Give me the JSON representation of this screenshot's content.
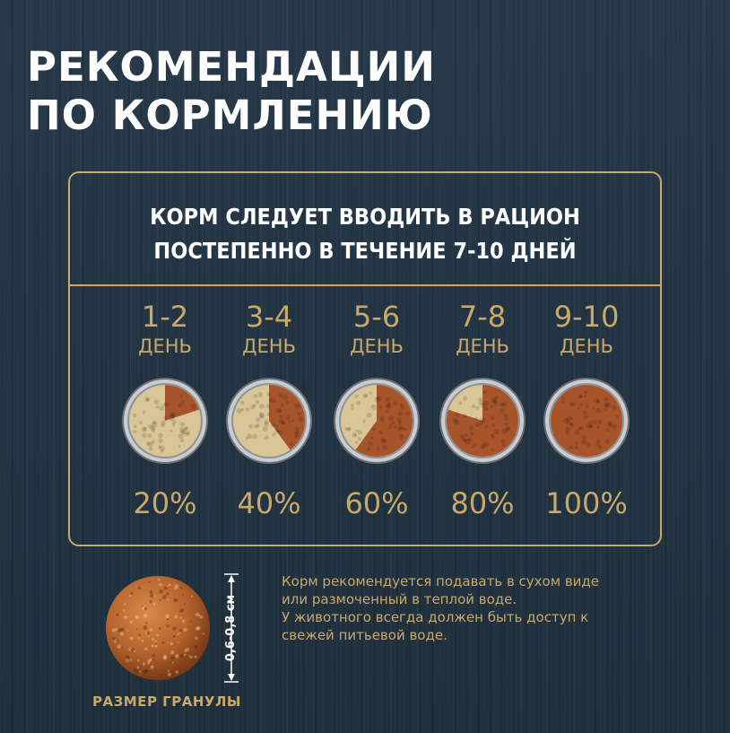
{
  "header": {
    "title_line1": "РЕКОМЕНДАЦИИ",
    "title_line2": "ПО КОРМЛЕНИЮ"
  },
  "schedule": {
    "intro_line1": "КОРМ СЛЕДУЕТ ВВОДИТЬ В РАЦИОН",
    "intro_line2": "ПОСТЕПЕННО В ТЕЧЕНИЕ 7-10 ДНЕЙ",
    "steps": [
      {
        "days": "1-2",
        "unit": "ДЕНЬ",
        "percent_label": "20%",
        "new_food_fraction": 0.2
      },
      {
        "days": "3-4",
        "unit": "ДЕНЬ",
        "percent_label": "40%",
        "new_food_fraction": 0.4
      },
      {
        "days": "5-6",
        "unit": "ДЕНЬ",
        "percent_label": "60%",
        "new_food_fraction": 0.6
      },
      {
        "days": "7-8",
        "unit": "ДЕНЬ",
        "percent_label": "80%",
        "new_food_fraction": 0.8
      },
      {
        "days": "9-10",
        "unit": "ДЕНЬ",
        "percent_label": "100%",
        "new_food_fraction": 1.0
      }
    ]
  },
  "granule": {
    "size_label": "0,6-0,8 см",
    "caption": "РАЗМЕР ГРАНУЛЫ"
  },
  "note": {
    "line1": "Корм рекомендуется подавать в сухом виде",
    "line2": "или размоченный в теплой воде.",
    "line3": "У животного всегда должен быть доступ к",
    "line4": "свежей питьевой воде."
  },
  "colors": {
    "background": "#23323f",
    "accent_gold": "#c9a86a",
    "headline_text": "#ffffff",
    "new_food": "#a8542b",
    "old_food": "#d9c596",
    "bowl_rim": "#c9ccd0"
  },
  "icons": {
    "bowl": "food-bowl-icon",
    "granule": "kibble-granule-icon",
    "size_marker": "dimension-arrow-icon"
  }
}
